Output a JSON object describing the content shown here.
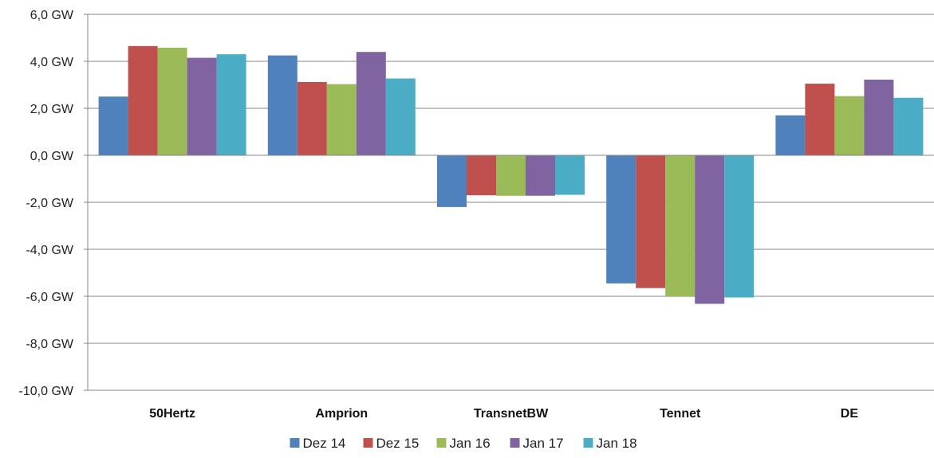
{
  "chart_data": {
    "type": "bar",
    "title": "",
    "xlabel": "",
    "ylabel": "",
    "categories": [
      "50Hertz",
      "Amprion",
      "TransnetBW",
      "Tennet",
      "DE"
    ],
    "series": [
      {
        "name": "Dez 14",
        "color": "#4F81BD",
        "values": [
          2.5,
          4.25,
          -2.2,
          -5.45,
          1.7
        ]
      },
      {
        "name": "Dez 15",
        "color": "#C0504D",
        "values": [
          4.65,
          3.12,
          -1.7,
          -5.65,
          3.05
        ]
      },
      {
        "name": "Jan 16",
        "color": "#9BBB59",
        "values": [
          4.58,
          3.03,
          -1.72,
          -6.0,
          2.52
        ]
      },
      {
        "name": "Jan 17",
        "color": "#8064A2",
        "values": [
          4.15,
          4.4,
          -1.72,
          -6.32,
          3.22
        ]
      },
      {
        "name": "Jan 18",
        "color": "#4BACC6",
        "values": [
          4.3,
          3.27,
          -1.68,
          -6.05,
          2.45
        ]
      }
    ],
    "ylim": [
      -10,
      6
    ],
    "yticks": [
      6,
      4,
      2,
      0,
      -2,
      -4,
      -6,
      -8,
      -10
    ],
    "ytick_labels": [
      "6,0 GW",
      "4,0 GW",
      "2,0 GW",
      "0,0 GW",
      "-2,0 GW",
      "-4,0 GW",
      "-6,0 GW",
      "-8,0 GW",
      "-10,0 GW"
    ],
    "grid": true,
    "legend_position": "bottom"
  }
}
